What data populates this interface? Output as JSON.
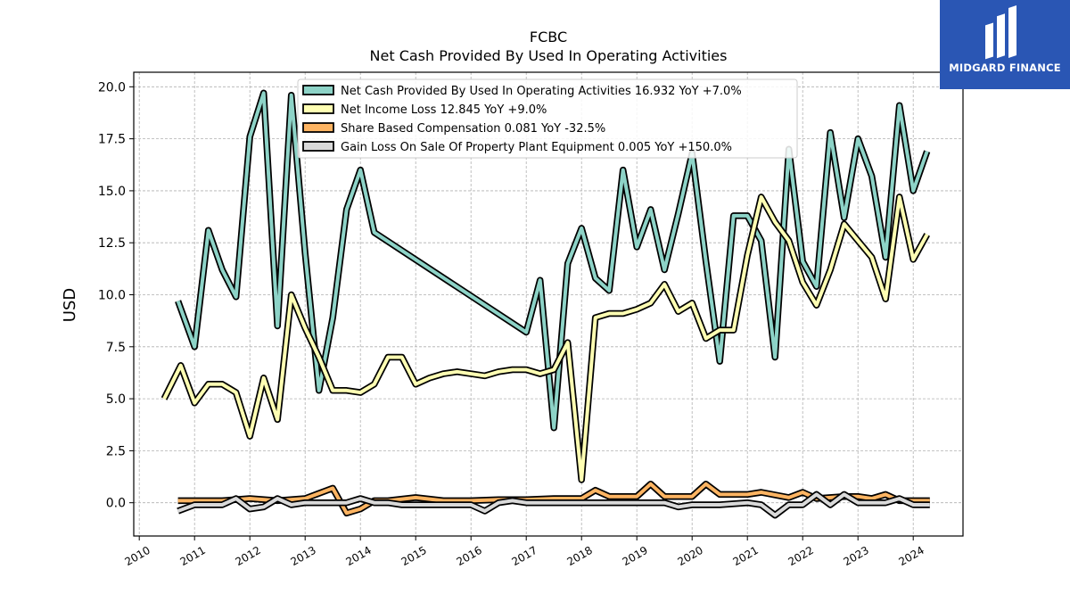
{
  "brand": {
    "name": "MIDGARD FINANCE",
    "logo_bg": "#2a56b4",
    "logo_fg": "#ffffff"
  },
  "chart_data": {
    "type": "line",
    "title": "FCBC",
    "subtitle": "Net Cash Provided By Used In Operating Activities",
    "ylabel": "USD",
    "xlabel": "",
    "xlim": [
      2009.9,
      2024.9
    ],
    "ylim": [
      -1.6,
      20.7
    ],
    "x_ticks": [
      "2010",
      "2011",
      "2012",
      "2013",
      "2014",
      "2015",
      "2016",
      "2017",
      "2018",
      "2019",
      "2020",
      "2021",
      "2022",
      "2023",
      "2024"
    ],
    "y_ticks": [
      "0.0",
      "2.5",
      "5.0",
      "7.5",
      "10.0",
      "12.5",
      "15.0",
      "17.5",
      "20.0"
    ],
    "grid": true,
    "legend_position": "top-center",
    "series": [
      {
        "name": "Net Cash Provided By Used In Operating Activities",
        "legend_label": "Net Cash Provided By Used In Operating Activities  16.932 YoY +7.0%",
        "color": "#8dd3c7",
        "points": [
          [
            2010.7,
            9.7
          ],
          [
            2011.0,
            7.5
          ],
          [
            2011.25,
            13.1
          ],
          [
            2011.5,
            11.2
          ],
          [
            2011.75,
            9.9
          ],
          [
            2012.0,
            17.6
          ],
          [
            2012.25,
            19.7
          ],
          [
            2012.5,
            8.5
          ],
          [
            2012.75,
            19.6
          ],
          [
            2013.0,
            12.0
          ],
          [
            2013.25,
            5.4
          ],
          [
            2013.5,
            8.9
          ],
          [
            2013.75,
            14.1
          ],
          [
            2014.0,
            16.0
          ],
          [
            2014.25,
            13.0
          ],
          [
            2017.0,
            8.2
          ],
          [
            2017.25,
            10.7
          ],
          [
            2017.5,
            3.6
          ],
          [
            2017.75,
            11.5
          ],
          [
            2018.0,
            13.2
          ],
          [
            2018.25,
            10.8
          ],
          [
            2018.5,
            10.2
          ],
          [
            2018.75,
            16.0
          ],
          [
            2019.0,
            12.3
          ],
          [
            2019.25,
            14.1
          ],
          [
            2019.5,
            11.2
          ],
          [
            2019.75,
            13.9
          ],
          [
            2020.0,
            16.8
          ],
          [
            2020.25,
            11.6
          ],
          [
            2020.5,
            6.8
          ],
          [
            2020.75,
            13.8
          ],
          [
            2021.0,
            13.8
          ],
          [
            2021.25,
            12.6
          ],
          [
            2021.5,
            7.0
          ],
          [
            2021.75,
            17.0
          ],
          [
            2022.0,
            11.6
          ],
          [
            2022.25,
            10.4
          ],
          [
            2022.5,
            17.8
          ],
          [
            2022.75,
            13.7
          ],
          [
            2023.0,
            17.5
          ],
          [
            2023.25,
            15.7
          ],
          [
            2023.5,
            11.8
          ],
          [
            2023.75,
            19.1
          ],
          [
            2024.0,
            15.0
          ],
          [
            2024.25,
            16.9
          ]
        ]
      },
      {
        "name": "Net Income Loss",
        "legend_label": "Net Income Loss  12.845 YoY +9.0%",
        "color": "#ffffb3",
        "points": [
          [
            2010.45,
            5.0
          ],
          [
            2010.75,
            6.6
          ],
          [
            2011.0,
            4.8
          ],
          [
            2011.25,
            5.7
          ],
          [
            2011.5,
            5.7
          ],
          [
            2011.75,
            5.3
          ],
          [
            2012.0,
            3.2
          ],
          [
            2012.25,
            6.0
          ],
          [
            2012.5,
            4.0
          ],
          [
            2012.75,
            10.0
          ],
          [
            2013.0,
            8.4
          ],
          [
            2013.25,
            7.0
          ],
          [
            2013.5,
            5.4
          ],
          [
            2013.75,
            5.4
          ],
          [
            2014.0,
            5.3
          ],
          [
            2014.25,
            5.7
          ],
          [
            2014.5,
            7.0
          ],
          [
            2014.75,
            7.0
          ],
          [
            2015.0,
            5.7
          ],
          [
            2015.25,
            6.0
          ],
          [
            2015.5,
            6.2
          ],
          [
            2015.75,
            6.3
          ],
          [
            2016.0,
            6.2
          ],
          [
            2016.25,
            6.1
          ],
          [
            2016.5,
            6.3
          ],
          [
            2016.75,
            6.4
          ],
          [
            2017.0,
            6.4
          ],
          [
            2017.25,
            6.2
          ],
          [
            2017.5,
            6.4
          ],
          [
            2017.75,
            7.7
          ],
          [
            2018.0,
            1.1
          ],
          [
            2018.25,
            8.9
          ],
          [
            2018.5,
            9.1
          ],
          [
            2018.75,
            9.1
          ],
          [
            2019.0,
            9.3
          ],
          [
            2019.25,
            9.6
          ],
          [
            2019.5,
            10.5
          ],
          [
            2019.75,
            9.2
          ],
          [
            2020.0,
            9.6
          ],
          [
            2020.25,
            7.9
          ],
          [
            2020.5,
            8.3
          ],
          [
            2020.75,
            8.3
          ],
          [
            2021.0,
            11.9
          ],
          [
            2021.25,
            14.7
          ],
          [
            2021.5,
            13.5
          ],
          [
            2021.75,
            12.6
          ],
          [
            2022.0,
            10.6
          ],
          [
            2022.25,
            9.5
          ],
          [
            2022.5,
            11.2
          ],
          [
            2022.75,
            13.4
          ],
          [
            2023.0,
            12.6
          ],
          [
            2023.25,
            11.8
          ],
          [
            2023.5,
            9.8
          ],
          [
            2023.75,
            14.7
          ],
          [
            2024.0,
            11.7
          ],
          [
            2024.25,
            12.9
          ]
        ]
      },
      {
        "name": "Share Based Compensation",
        "legend_label": "Share Based Compensation  0.081 YoY -32.5%",
        "color": "#fdb462",
        "points": [
          [
            2010.7,
            0.1
          ],
          [
            2011.0,
            0.1
          ],
          [
            2011.5,
            0.1
          ],
          [
            2012.0,
            0.2
          ],
          [
            2012.5,
            0.1
          ],
          [
            2013.0,
            0.2
          ],
          [
            2013.5,
            0.7
          ],
          [
            2013.75,
            -0.5
          ],
          [
            2014.0,
            -0.3
          ],
          [
            2014.25,
            0.1
          ],
          [
            2014.5,
            0.1
          ],
          [
            2015.0,
            0.25
          ],
          [
            2015.5,
            0.1
          ],
          [
            2016.0,
            0.1
          ],
          [
            2016.5,
            0.15
          ],
          [
            2017.0,
            0.15
          ],
          [
            2017.5,
            0.2
          ],
          [
            2018.0,
            0.2
          ],
          [
            2018.25,
            0.6
          ],
          [
            2018.5,
            0.3
          ],
          [
            2019.0,
            0.3
          ],
          [
            2019.25,
            0.9
          ],
          [
            2019.5,
            0.3
          ],
          [
            2020.0,
            0.3
          ],
          [
            2020.25,
            0.9
          ],
          [
            2020.5,
            0.4
          ],
          [
            2021.0,
            0.4
          ],
          [
            2021.25,
            0.5
          ],
          [
            2021.75,
            0.25
          ],
          [
            2022.0,
            0.5
          ],
          [
            2022.25,
            0.2
          ],
          [
            2022.75,
            0.3
          ],
          [
            2023.0,
            0.3
          ],
          [
            2023.25,
            0.2
          ],
          [
            2023.5,
            0.4
          ],
          [
            2023.75,
            0.1
          ],
          [
            2024.0,
            0.1
          ],
          [
            2024.3,
            0.1
          ]
        ]
      },
      {
        "name": "Gain Loss On Sale Of Property Plant Equipment",
        "legend_label": "Gain Loss On Sale Of Property Plant Equipment  0.005 YoY +150.0%",
        "color": "#d9d9d9",
        "points": [
          [
            2010.7,
            -0.4
          ],
          [
            2011.0,
            -0.1
          ],
          [
            2011.5,
            -0.1
          ],
          [
            2011.75,
            0.2
          ],
          [
            2012.0,
            -0.3
          ],
          [
            2012.25,
            -0.2
          ],
          [
            2012.5,
            0.2
          ],
          [
            2012.75,
            -0.1
          ],
          [
            2013.0,
            0.0
          ],
          [
            2013.5,
            0.0
          ],
          [
            2013.75,
            0.0
          ],
          [
            2014.0,
            0.2
          ],
          [
            2014.25,
            0.0
          ],
          [
            2014.5,
            0.0
          ],
          [
            2014.75,
            -0.1
          ],
          [
            2015.0,
            -0.1
          ],
          [
            2015.5,
            -0.1
          ],
          [
            2016.0,
            -0.1
          ],
          [
            2016.25,
            -0.4
          ],
          [
            2016.5,
            0.0
          ],
          [
            2016.75,
            0.1
          ],
          [
            2017.0,
            0.0
          ],
          [
            2017.5,
            0.0
          ],
          [
            2018.0,
            0.0
          ],
          [
            2018.5,
            0.0
          ],
          [
            2019.0,
            0.0
          ],
          [
            2019.25,
            0.0
          ],
          [
            2019.5,
            0.0
          ],
          [
            2019.75,
            -0.2
          ],
          [
            2020.0,
            -0.1
          ],
          [
            2020.5,
            -0.1
          ],
          [
            2021.0,
            0.0
          ],
          [
            2021.25,
            -0.1
          ],
          [
            2021.5,
            -0.6
          ],
          [
            2021.75,
            -0.1
          ],
          [
            2022.0,
            -0.1
          ],
          [
            2022.25,
            0.4
          ],
          [
            2022.5,
            -0.1
          ],
          [
            2022.75,
            0.4
          ],
          [
            2023.0,
            0.0
          ],
          [
            2023.5,
            0.0
          ],
          [
            2023.75,
            0.2
          ],
          [
            2024.0,
            -0.1
          ],
          [
            2024.3,
            -0.1
          ]
        ]
      }
    ]
  }
}
